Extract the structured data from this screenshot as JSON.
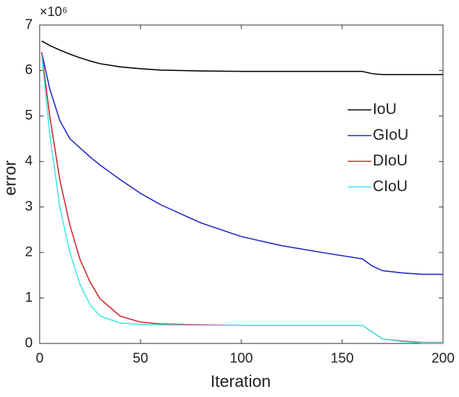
{
  "chart_data": {
    "type": "line",
    "x_label": "Iteration",
    "y_label": "error",
    "y_multiplier_label": "×10⁶",
    "x": [
      1,
      5,
      10,
      15,
      20,
      25,
      30,
      40,
      50,
      60,
      80,
      100,
      120,
      140,
      160,
      165,
      170,
      180,
      190,
      200
    ],
    "series": [
      {
        "name": "IoU",
        "color": "#000000",
        "values": [
          6.65,
          6.55,
          6.45,
          6.36,
          6.28,
          6.21,
          6.15,
          6.08,
          6.04,
          6.01,
          5.99,
          5.98,
          5.98,
          5.98,
          5.98,
          5.93,
          5.91,
          5.91,
          5.91,
          5.91
        ]
      },
      {
        "name": "GIoU",
        "color": "#1f24c4",
        "values": [
          6.4,
          5.6,
          4.9,
          4.5,
          4.3,
          4.1,
          3.92,
          3.6,
          3.3,
          3.05,
          2.65,
          2.35,
          2.15,
          2.0,
          1.86,
          1.7,
          1.6,
          1.55,
          1.52,
          1.52
        ]
      },
      {
        "name": "DIoU",
        "color": "#d2202a",
        "values": [
          6.4,
          5.0,
          3.6,
          2.6,
          1.85,
          1.35,
          0.98,
          0.6,
          0.47,
          0.43,
          0.41,
          0.4,
          0.4,
          0.4,
          0.4,
          0.25,
          0.1,
          0.05,
          0.02,
          0.02
        ]
      },
      {
        "name": "CIoU",
        "color": "#3fe8e8",
        "values": [
          6.35,
          4.6,
          3.0,
          2.0,
          1.3,
          0.85,
          0.6,
          0.45,
          0.42,
          0.41,
          0.4,
          0.4,
          0.4,
          0.4,
          0.4,
          0.25,
          0.1,
          0.04,
          0.01,
          0.01
        ]
      }
    ],
    "xlim": [
      0,
      200
    ],
    "xticks": [
      0,
      50,
      100,
      150,
      200
    ],
    "ylim": [
      0,
      7
    ],
    "yticks": [
      0,
      1,
      2,
      3,
      4,
      5,
      6,
      7
    ],
    "legend": "right",
    "box": true
  }
}
